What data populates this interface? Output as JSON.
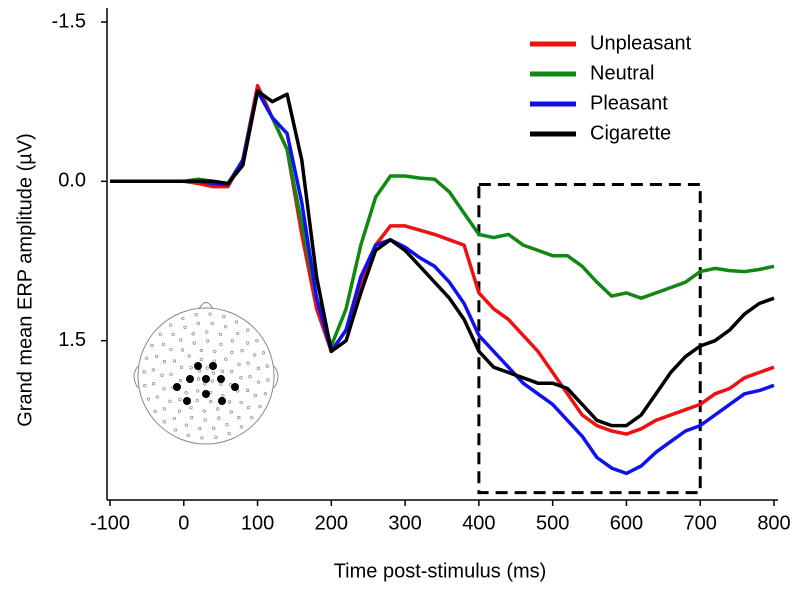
{
  "chart_data": {
    "type": "line",
    "x_label": "Time post-stimulus (ms)",
    "y_label": "Grand mean ERP amplitude (µV)",
    "x": [
      -100,
      -80,
      -60,
      -40,
      -20,
      0,
      20,
      40,
      60,
      80,
      100,
      120,
      140,
      160,
      180,
      200,
      220,
      240,
      260,
      280,
      300,
      320,
      340,
      360,
      380,
      400,
      420,
      440,
      460,
      480,
      500,
      520,
      540,
      560,
      580,
      600,
      620,
      640,
      660,
      680,
      700,
      720,
      740,
      760,
      780,
      800
    ],
    "series": [
      {
        "name": "Unpleasant",
        "color": "#ee1111",
        "values": [
          0,
          0,
          0,
          0,
          0,
          0,
          0.02,
          0.05,
          0.05,
          -0.2,
          -0.9,
          -0.6,
          -0.3,
          0.5,
          1.2,
          1.6,
          1.4,
          0.95,
          0.6,
          0.42,
          0.42,
          0.46,
          0.5,
          0.55,
          0.6,
          1.05,
          1.2,
          1.3,
          1.45,
          1.6,
          1.8,
          2.0,
          2.2,
          2.3,
          2.35,
          2.38,
          2.33,
          2.25,
          2.2,
          2.15,
          2.1,
          2.0,
          1.95,
          1.85,
          1.8,
          1.75
        ]
      },
      {
        "name": "Neutral",
        "color": "#118811",
        "values": [
          0,
          0,
          0,
          0,
          0,
          0,
          -0.02,
          0,
          0.02,
          -0.2,
          -0.85,
          -0.6,
          -0.3,
          0.4,
          1.1,
          1.55,
          1.2,
          0.6,
          0.15,
          -0.05,
          -0.05,
          -0.03,
          -0.02,
          0.1,
          0.3,
          0.5,
          0.53,
          0.5,
          0.6,
          0.65,
          0.7,
          0.7,
          0.8,
          0.95,
          1.08,
          1.05,
          1.1,
          1.05,
          1.0,
          0.95,
          0.85,
          0.82,
          0.84,
          0.85,
          0.83,
          0.8
        ]
      },
      {
        "name": "Pleasant",
        "color": "#1111ee",
        "values": [
          0,
          0,
          0,
          0,
          0,
          0,
          0,
          0.02,
          0.03,
          -0.2,
          -0.85,
          -0.6,
          -0.45,
          0.2,
          1.1,
          1.6,
          1.4,
          0.9,
          0.6,
          0.55,
          0.62,
          0.72,
          0.8,
          0.95,
          1.15,
          1.45,
          1.6,
          1.75,
          1.9,
          2.0,
          2.1,
          2.25,
          2.4,
          2.6,
          2.7,
          2.75,
          2.68,
          2.55,
          2.45,
          2.35,
          2.3,
          2.2,
          2.1,
          2.0,
          1.97,
          1.92
        ]
      },
      {
        "name": "Cigarette",
        "color": "#000000",
        "values": [
          0,
          0,
          0,
          0,
          0,
          0,
          0,
          0,
          0.02,
          -0.15,
          -0.85,
          -0.75,
          -0.82,
          -0.2,
          0.9,
          1.6,
          1.5,
          1.05,
          0.65,
          0.55,
          0.65,
          0.8,
          0.95,
          1.1,
          1.3,
          1.6,
          1.75,
          1.8,
          1.85,
          1.9,
          1.9,
          1.95,
          2.1,
          2.25,
          2.3,
          2.3,
          2.2,
          2.0,
          1.8,
          1.65,
          1.55,
          1.5,
          1.4,
          1.25,
          1.15,
          1.1
        ]
      }
    ],
    "xlim": [
      -100,
      800
    ],
    "xticks": [
      -100,
      0,
      100,
      200,
      300,
      400,
      500,
      600,
      700,
      800
    ],
    "ylim": [
      -1.5,
      3
    ],
    "y_inverted": true,
    "yticks": [
      -1.5,
      {
        "value": 0,
        "label": "0.0"
      },
      1.5
    ],
    "highlight": {
      "xlim": [
        400,
        700
      ],
      "ylim": [
        0.03,
        2.93
      ]
    },
    "legend": "upper right"
  }
}
